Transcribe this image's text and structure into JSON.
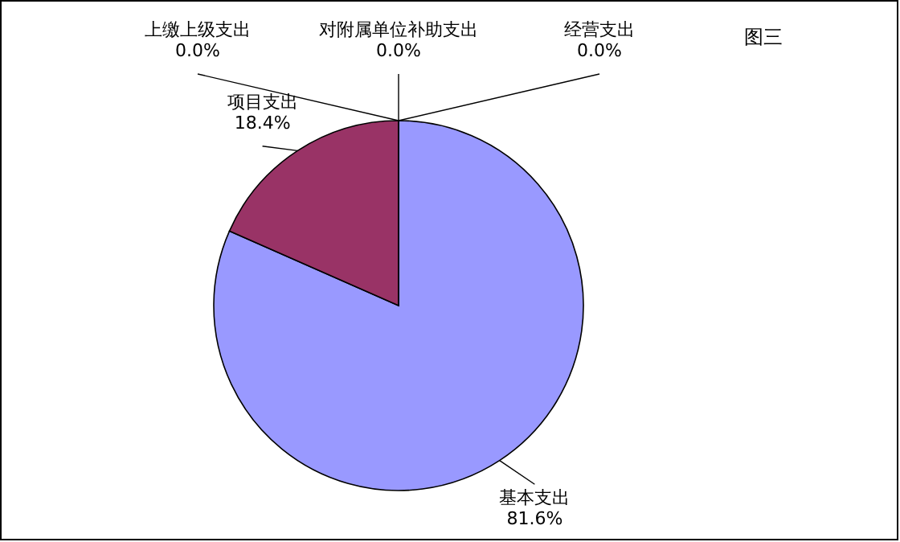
{
  "chart_data": {
    "type": "pie",
    "title": "图三",
    "categories": [
      "基本支出",
      "项目支出",
      "上缴上级支出",
      "对附属单位补助支出",
      "经营支出"
    ],
    "values": [
      81.6,
      18.4,
      0.0,
      0.0,
      0.0
    ],
    "value_labels": [
      "81.6%",
      "18.4%",
      "0.0%",
      "0.0%",
      "0.0%"
    ],
    "colors": [
      "#9999ff",
      "#993366",
      "#ffffcc",
      "#ccffff",
      "#660066"
    ]
  }
}
